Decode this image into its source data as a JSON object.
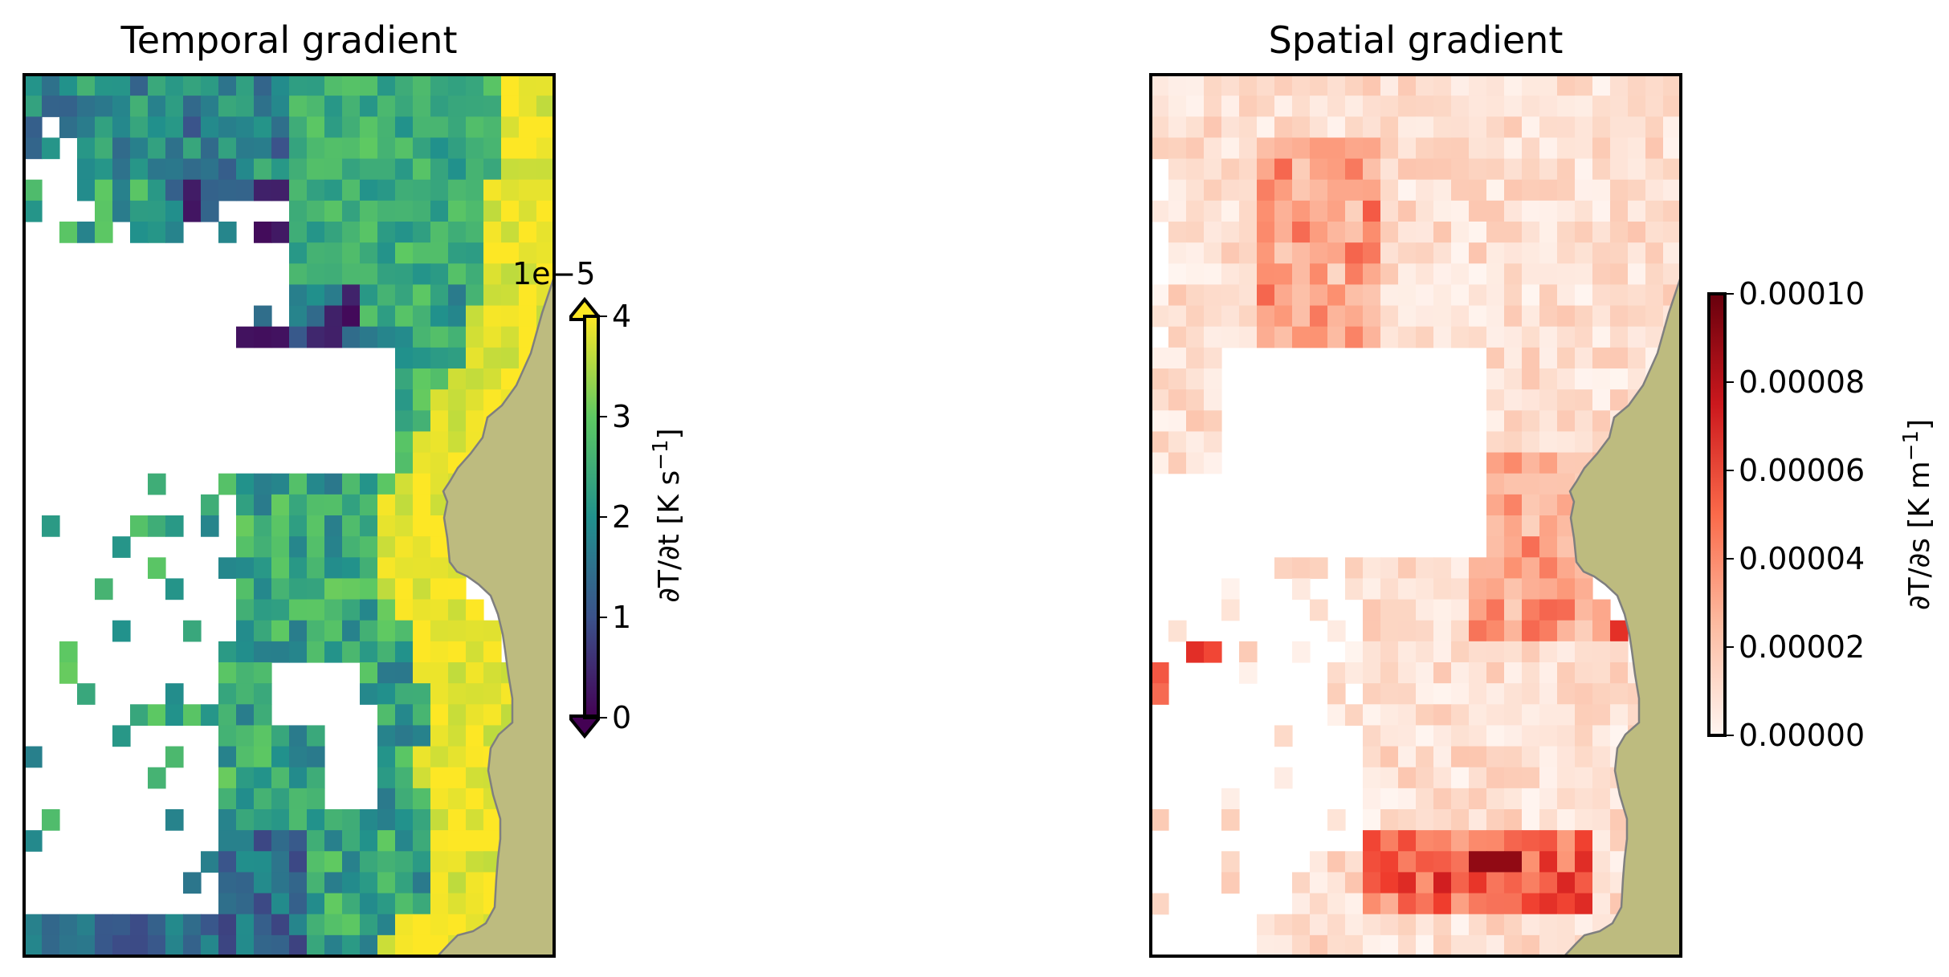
{
  "chart_data": [
    {
      "type": "heatmap",
      "title": "Temporal gradient",
      "colormap": "viridis",
      "colorbar": {
        "label_prefix": "∂T/∂t [K s",
        "label_exp": "−1",
        "label_suffix": "]",
        "offset_text": "1e−5",
        "ticks": [
          "0",
          "1",
          "2",
          "3",
          "4"
        ],
        "range": [
          0,
          4
        ],
        "extend": "both"
      },
      "land_color": "#bdbb7f",
      "grid_size": [
        30,
        42
      ]
    },
    {
      "type": "heatmap",
      "title": "Spatial gradient",
      "colormap": "Reds",
      "colorbar": {
        "label_prefix": "∂T/∂s [K m",
        "label_exp": "−1",
        "label_suffix": "]",
        "ticks": [
          "0.00000",
          "0.00002",
          "0.00004",
          "0.00006",
          "0.00008",
          "0.00010"
        ],
        "range": [
          0,
          0.0001
        ]
      },
      "land_color": "#bdbb7f",
      "grid_size": [
        30,
        42
      ]
    }
  ]
}
